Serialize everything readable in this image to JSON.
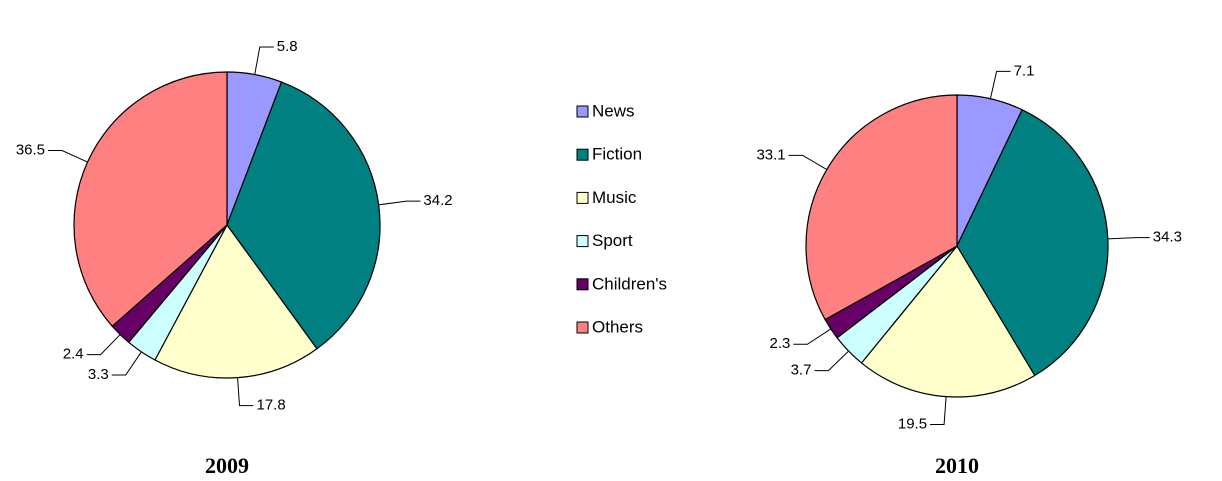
{
  "chart_data": [
    {
      "type": "pie",
      "title": "2009",
      "categories": [
        "News",
        "Fiction",
        "Music",
        "Sport",
        "Children's",
        "Others"
      ],
      "values": [
        5.8,
        34.2,
        17.8,
        3.3,
        2.4,
        36.5
      ],
      "colors": [
        "#9999ff",
        "#008080",
        "#ffffcc",
        "#ccffff",
        "#660066",
        "#ff8080"
      ]
    },
    {
      "type": "pie",
      "title": "2010",
      "categories": [
        "News",
        "Fiction",
        "Music",
        "Sport",
        "Children's",
        "Others"
      ],
      "values": [
        7.1,
        34.3,
        19.5,
        3.7,
        2.3,
        33.1
      ],
      "colors": [
        "#9999ff",
        "#008080",
        "#ffffcc",
        "#ccffff",
        "#660066",
        "#ff8080"
      ]
    }
  ]
}
